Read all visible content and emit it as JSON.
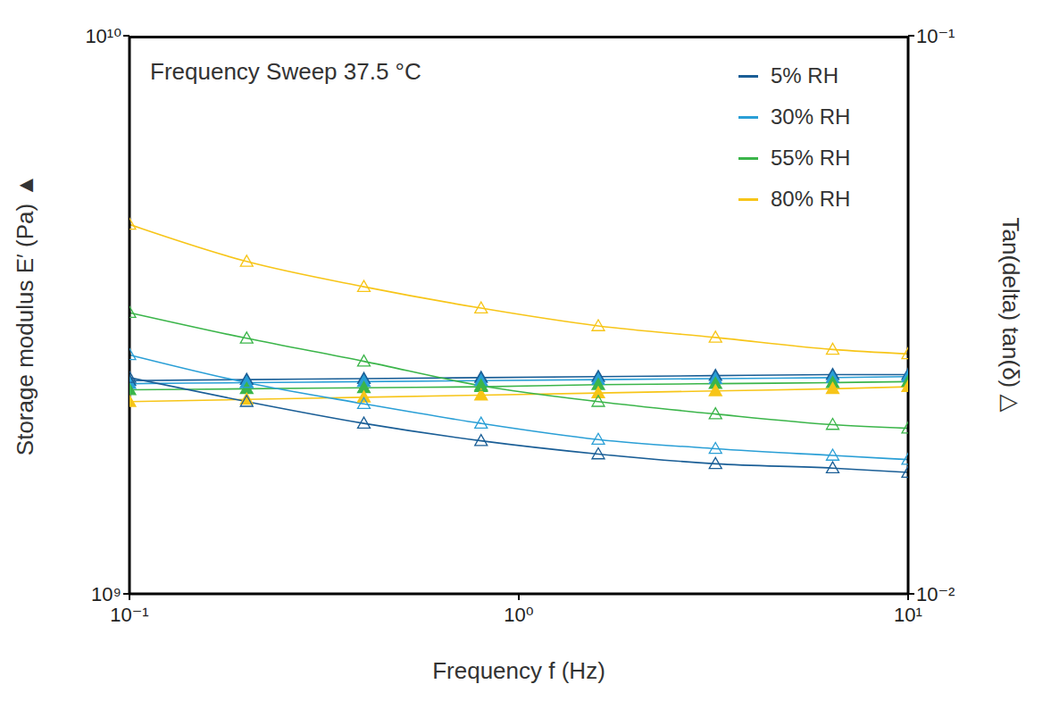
{
  "chart_data": {
    "type": "line",
    "title": "Frequency Sweep 37.5 °C",
    "x_label": "Frequency f (Hz)",
    "y_label": "Storage modulus E′ (Pa) ▲",
    "y2_label": "Tan(delta) tan(δ) △",
    "log": true,
    "legend": "upper right",
    "x": [
      0.1,
      0.2,
      0.4,
      0.8,
      1.6,
      3.2,
      6.4,
      10
    ],
    "xlim": [
      0.1,
      10
    ],
    "xticks": [
      {
        "value": 0.1,
        "label": "10⁻¹"
      },
      {
        "value": 1,
        "label": "10⁰"
      },
      {
        "value": 10,
        "label": "10¹"
      }
    ],
    "ylim": [
      1000000000,
      10000000000
    ],
    "yticks": [
      {
        "value": 1000000000,
        "label": "10⁹"
      },
      {
        "value": 10000000000,
        "label": "10¹⁰"
      }
    ],
    "y2lim": [
      0.01,
      0.1
    ],
    "y2ticks": [
      {
        "value": 0.01,
        "label": "10⁻²"
      },
      {
        "value": 0.1,
        "label": "10⁻¹"
      }
    ],
    "series": [
      {
        "name": "5% RH",
        "color": "#1a5e96",
        "marker": "triangle",
        "axis": "y",
        "values": [
          2410000000,
          2420000000,
          2430000000,
          2440000000,
          2450000000,
          2460000000,
          2470000000,
          2470000000
        ]
      },
      {
        "name": "30% RH",
        "color": "#2a9fd6",
        "marker": "triangle",
        "axis": "y",
        "values": [
          2380000000,
          2390000000,
          2400000000,
          2410000000,
          2420000000,
          2430000000,
          2440000000,
          2450000000
        ]
      },
      {
        "name": "55% RH",
        "color": "#3bb54a",
        "marker": "triangle",
        "axis": "y",
        "values": [
          2320000000,
          2330000000,
          2340000000,
          2350000000,
          2370000000,
          2380000000,
          2390000000,
          2400000000
        ]
      },
      {
        "name": "80% RH",
        "color": "#f7c518",
        "marker": "triangle",
        "axis": "y",
        "values": [
          2210000000,
          2230000000,
          2250000000,
          2270000000,
          2290000000,
          2310000000,
          2330000000,
          2350000000
        ]
      },
      {
        "name": "5% RH",
        "color": "#1a5e96",
        "marker": "open_triangle",
        "axis": "y2",
        "values": [
          0.0244,
          0.0221,
          0.0202,
          0.0188,
          0.0178,
          0.0171,
          0.0168,
          0.0165
        ]
      },
      {
        "name": "30% RH",
        "color": "#2a9fd6",
        "marker": "open_triangle",
        "axis": "y2",
        "values": [
          0.0268,
          0.0239,
          0.0219,
          0.0202,
          0.0189,
          0.0182,
          0.0177,
          0.0174
        ]
      },
      {
        "name": "55% RH",
        "color": "#3bb54a",
        "marker": "open_triangle",
        "axis": "y2",
        "values": [
          0.0319,
          0.0287,
          0.0261,
          0.0236,
          0.0221,
          0.021,
          0.0201,
          0.0198
        ]
      },
      {
        "name": "80% RH",
        "color": "#f7c518",
        "marker": "open_triangle",
        "axis": "y2",
        "values": [
          0.0459,
          0.0394,
          0.0355,
          0.0325,
          0.0302,
          0.0288,
          0.0274,
          0.0269
        ]
      }
    ]
  }
}
